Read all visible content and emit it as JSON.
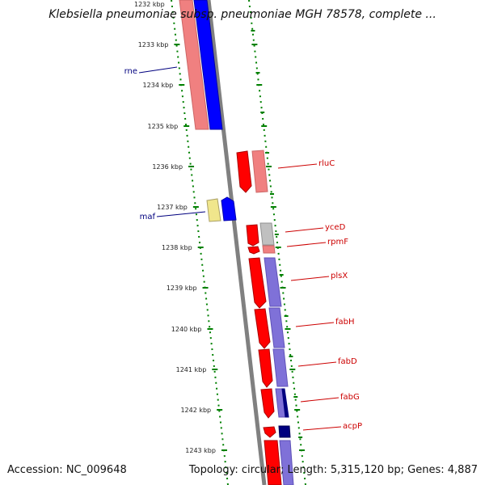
{
  "title": "Klebsiella pneumoniae subsp. pneumoniae MGH 78578, complete ...",
  "footer": {
    "accession": "Accession: NC_009648",
    "info": "Topology: circular; Length: 5,315,120 bp; Genes: 4,887"
  },
  "colors": {
    "red": "#ff0000",
    "pink": "#f08080",
    "blue": "#0000ff",
    "light_blue": "#7f71d8",
    "navy": "#00007f",
    "gray": "#c0c0c0",
    "yellow": "#f0e68c",
    "tick": "#008000",
    "backbone": "#808080"
  },
  "ticks": [
    {
      "label": "1233 kbp"
    },
    {
      "label": "1234 kbp"
    },
    {
      "label": "1235 kbp"
    },
    {
      "label": "1236 kbp"
    },
    {
      "label": "1237 kbp"
    },
    {
      "label": "1238 kbp"
    },
    {
      "label": "1239 kbp"
    },
    {
      "label": "1240 kbp"
    },
    {
      "label": "1241 kbp"
    },
    {
      "label": "1242 kbp"
    },
    {
      "label": "1243 kbp"
    }
  ],
  "top_partial_tick": "1232 kbp",
  "gene_labels": [
    {
      "name": "rne",
      "color": "#00007f"
    },
    {
      "name": "maf",
      "color": "#00007f"
    },
    {
      "name": "rluC",
      "color": "#cc0000"
    },
    {
      "name": "yceD",
      "color": "#cc0000"
    },
    {
      "name": "rpmF",
      "color": "#cc0000"
    },
    {
      "name": "plsX",
      "color": "#cc0000"
    },
    {
      "name": "fabH",
      "color": "#cc0000"
    },
    {
      "name": "fabD",
      "color": "#cc0000"
    },
    {
      "name": "fabG",
      "color": "#cc0000"
    },
    {
      "name": "acpP",
      "color": "#cc0000"
    }
  ]
}
